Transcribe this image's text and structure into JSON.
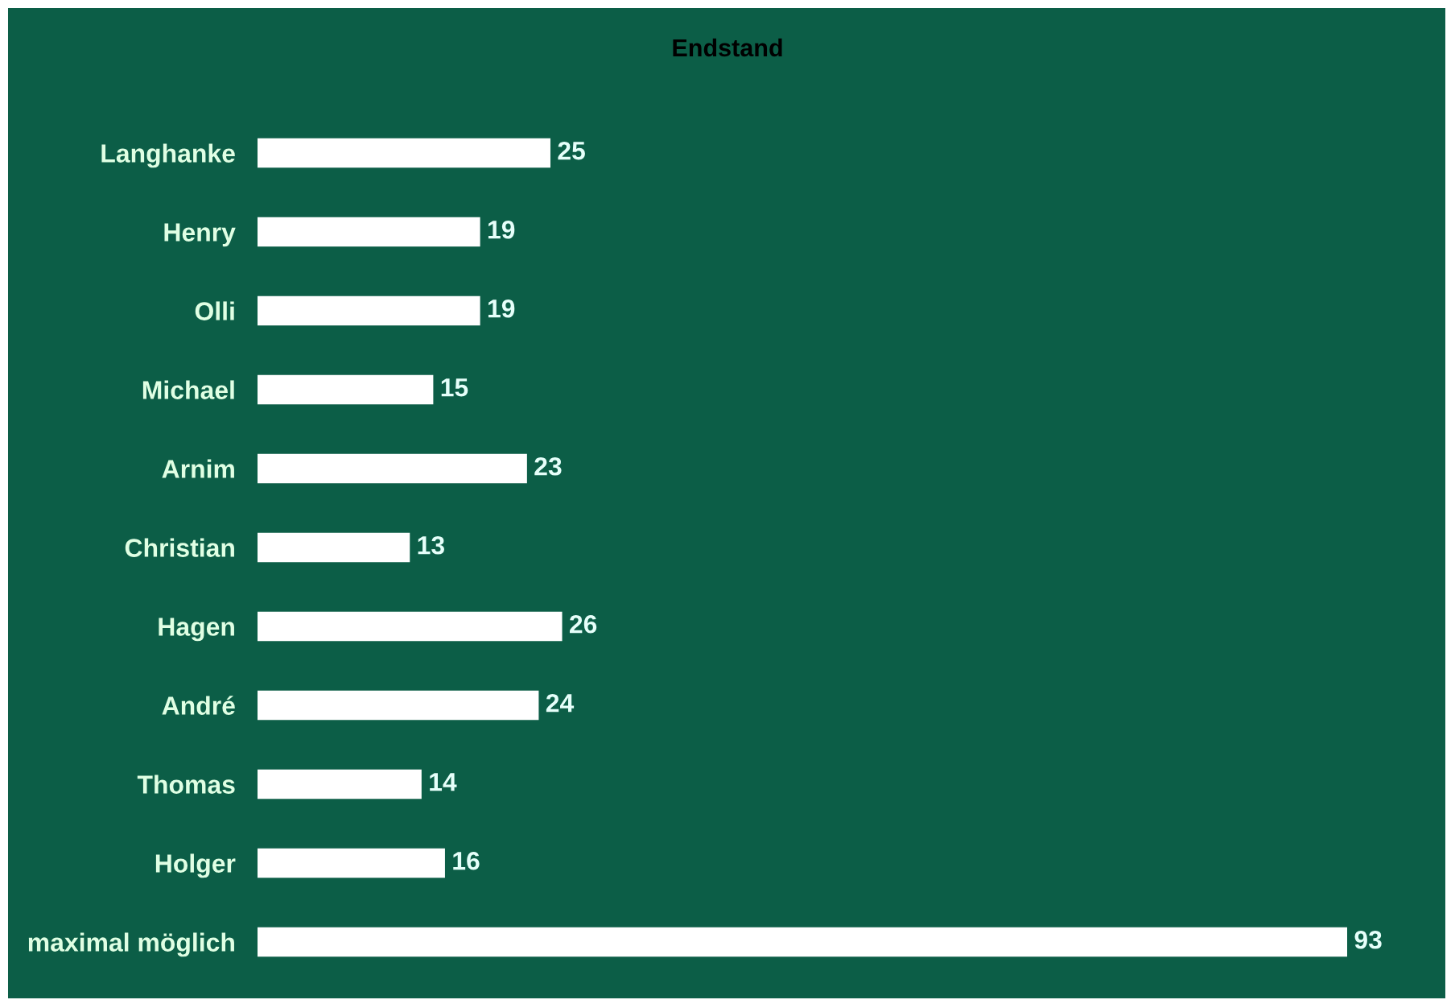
{
  "chart_data": {
    "type": "bar",
    "orientation": "horizontal",
    "title": "Endstand",
    "categories": [
      "Langhanke",
      "Henry",
      "Olli",
      "Michael",
      "Arnim",
      "Christian",
      "Hagen",
      "André",
      "Thomas",
      "Holger",
      "maximal möglich"
    ],
    "values": [
      25,
      19,
      19,
      15,
      23,
      13,
      26,
      24,
      14,
      16,
      93
    ],
    "color": "#ffffff",
    "data_labels": true,
    "tick_labels": "y"
  }
}
